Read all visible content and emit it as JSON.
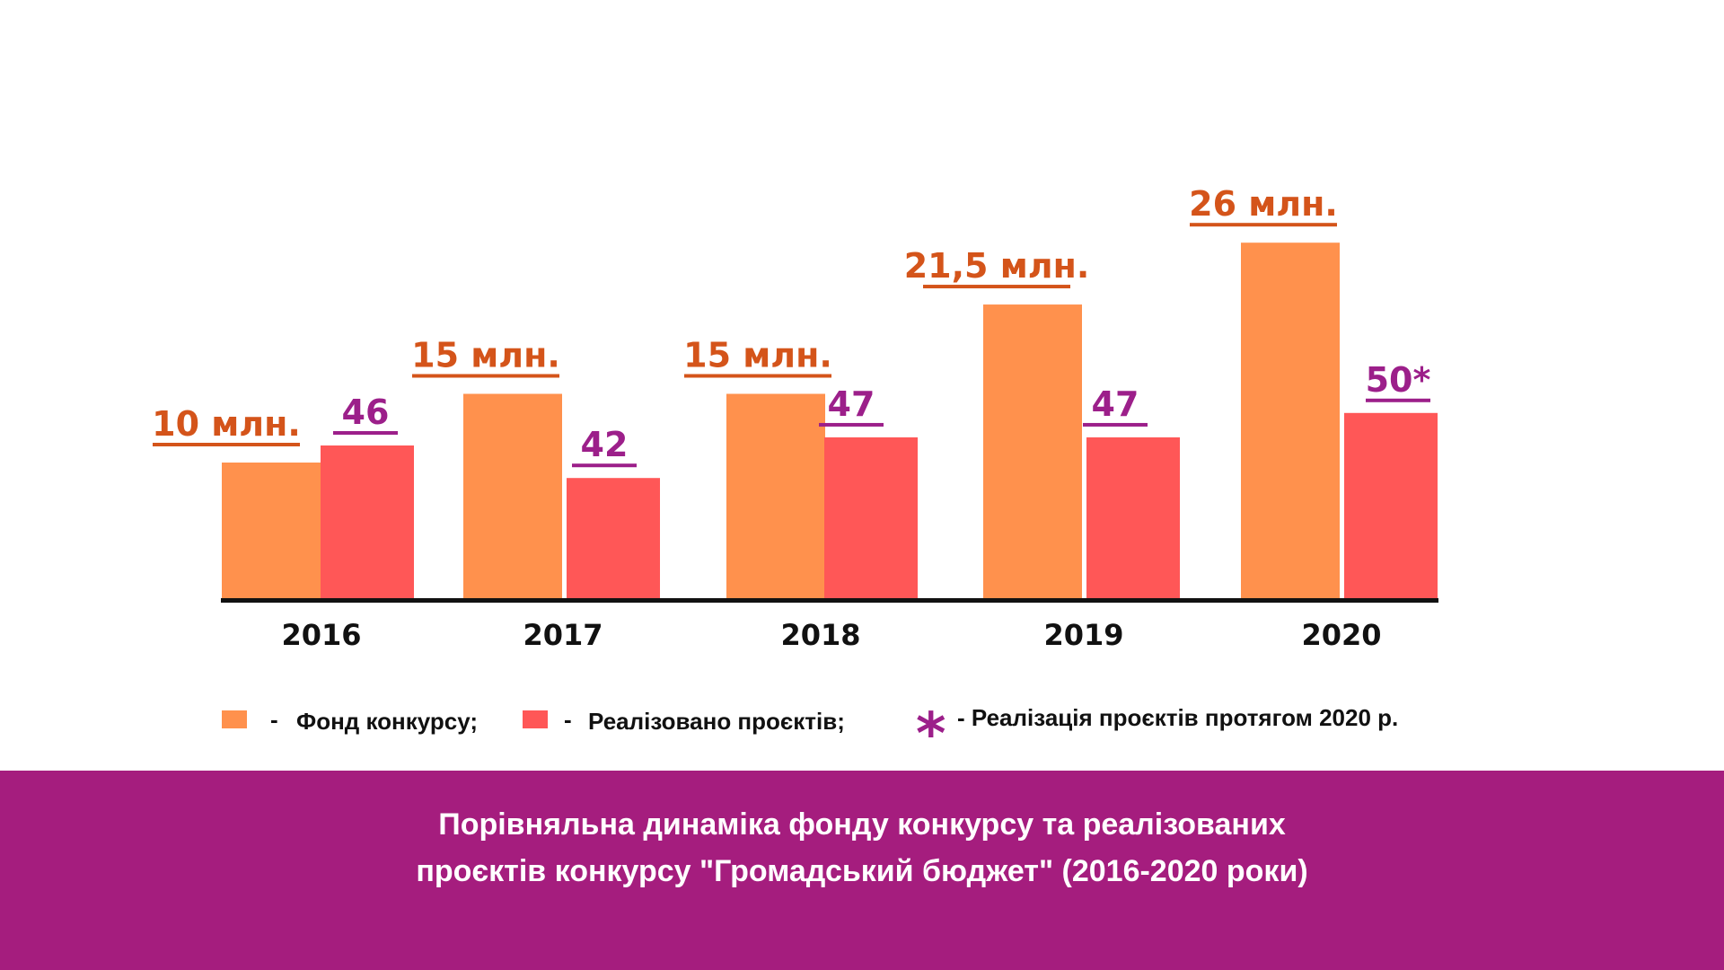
{
  "colors": {
    "fund": "#FF914D",
    "projects": "#FF5757",
    "fund_label": "#D4541A",
    "projects_label": "#9C1F8A",
    "axis": "#111111",
    "band": "#A51D7E",
    "tick": "#111111"
  },
  "chart_data": {
    "type": "bar",
    "categories": [
      "2016",
      "2017",
      "2018",
      "2019",
      "2020"
    ],
    "series": [
      {
        "name": "Фонд конкурсу",
        "values": [
          10,
          15,
          15,
          21.5,
          26
        ],
        "labels": [
          "10 млн.",
          "15 млн.",
          "15 млн.",
          "21,5 млн.",
          "26 млн."
        ]
      },
      {
        "name": "Реалізовано проєктів",
        "values": [
          46,
          42,
          47,
          47,
          50
        ],
        "labels": [
          "46",
          "42",
          "47",
          "47 ",
          "50*"
        ]
      }
    ],
    "grid": false,
    "legend_placement": "bottom"
  },
  "legend": {
    "dash": "-",
    "fund_label": "Фонд конкурсу;",
    "projects_label": "Реалізовано проєктів;",
    "asterisk": "*",
    "asterisk_note": "- Реалізація проєктів протягом 2020 р."
  },
  "footer": {
    "title_line1": "Порівняльна динаміка фонду конкурсу та реалізованих",
    "title_line2": "проєктів конкурсу \"Громадський бюджет\"  (2016-2020 роки)"
  }
}
